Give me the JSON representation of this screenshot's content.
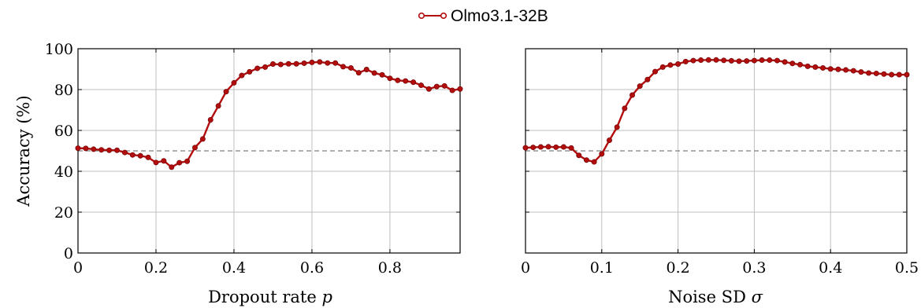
{
  "colors": {
    "series": "#b30d0d",
    "baseline": "#7f7f7f",
    "grid": "#bfbfbf"
  },
  "legend": {
    "label": "Olmo3.1-32B",
    "placement": "top-center"
  },
  "chart_data": [
    {
      "type": "line",
      "xlabel": "Dropout rate",
      "xlabel_symbol": "p",
      "ylabel": "Accuracy (%)",
      "xlim": [
        0,
        0.98
      ],
      "ylim": [
        0,
        100
      ],
      "xticks": [
        0,
        0.2,
        0.4,
        0.6,
        0.8
      ],
      "xtick_labels": [
        "0",
        "0.2",
        "0.4",
        "0.6",
        "0.8"
      ],
      "yticks": [
        0,
        20,
        40,
        60,
        80,
        100
      ],
      "ytick_labels": [
        "0",
        "20",
        "40",
        "60",
        "80",
        "100"
      ],
      "grid": true,
      "baseline": 50,
      "series": [
        {
          "name": "Olmo3.1-32B",
          "x": [
            0,
            0.02,
            0.04,
            0.06,
            0.08,
            0.1,
            0.12,
            0.14,
            0.16,
            0.18,
            0.2,
            0.22,
            0.24,
            0.26,
            0.28,
            0.3,
            0.32,
            0.34,
            0.36,
            0.38,
            0.4,
            0.42,
            0.44,
            0.46,
            0.48,
            0.5,
            0.52,
            0.54,
            0.56,
            0.58,
            0.6,
            0.62,
            0.64,
            0.66,
            0.68,
            0.7,
            0.72,
            0.74,
            0.76,
            0.78,
            0.8,
            0.82,
            0.84,
            0.86,
            0.88,
            0.9,
            0.92,
            0.94,
            0.96,
            0.98
          ],
          "y": [
            51.3,
            51.2,
            50.8,
            50.5,
            50.3,
            50.3,
            49.2,
            48.0,
            47.6,
            46.8,
            44.3,
            45.1,
            42.0,
            44.2,
            44.9,
            51.6,
            55.8,
            65.2,
            72.0,
            79.0,
            83.3,
            86.9,
            88.7,
            90.4,
            91.0,
            92.5,
            92.3,
            92.6,
            92.6,
            92.9,
            93.3,
            93.5,
            93.0,
            93.0,
            91.2,
            90.6,
            88.2,
            89.8,
            88.1,
            87.2,
            85.5,
            84.5,
            84.2,
            83.6,
            82.1,
            80.3,
            81.5,
            81.8,
            79.6,
            80.3
          ]
        }
      ]
    },
    {
      "type": "line",
      "xlabel": "Noise SD",
      "xlabel_symbol": "σ",
      "ylabel": "",
      "xlim": [
        0,
        0.5
      ],
      "ylim": [
        0,
        100
      ],
      "xticks": [
        0,
        0.1,
        0.2,
        0.3,
        0.4,
        0.5
      ],
      "xtick_labels": [
        "0",
        "0.1",
        "0.2",
        "0.3",
        "0.4",
        "0.5"
      ],
      "yticks": [
        0,
        20,
        40,
        60,
        80,
        100
      ],
      "ytick_labels": [],
      "grid": true,
      "baseline": 50,
      "series": [
        {
          "name": "Olmo3.1-32B",
          "x": [
            0,
            0.01,
            0.02,
            0.03,
            0.04,
            0.05,
            0.06,
            0.07,
            0.08,
            0.09,
            0.1,
            0.11,
            0.12,
            0.13,
            0.14,
            0.15,
            0.16,
            0.17,
            0.18,
            0.19,
            0.2,
            0.21,
            0.22,
            0.23,
            0.24,
            0.25,
            0.26,
            0.27,
            0.28,
            0.29,
            0.3,
            0.31,
            0.32,
            0.33,
            0.34,
            0.35,
            0.36,
            0.37,
            0.38,
            0.39,
            0.4,
            0.41,
            0.42,
            0.43,
            0.44,
            0.45,
            0.46,
            0.47,
            0.48,
            0.49,
            0.5
          ],
          "y": [
            51.5,
            51.7,
            51.9,
            52.0,
            51.8,
            51.9,
            51.4,
            47.8,
            45.5,
            44.6,
            48.5,
            55.2,
            61.6,
            70.8,
            77.3,
            81.7,
            84.9,
            88.8,
            91.0,
            92.0,
            92.5,
            93.7,
            94.2,
            94.4,
            94.5,
            94.5,
            94.3,
            94.1,
            93.9,
            94.0,
            94.2,
            94.4,
            94.4,
            94.2,
            93.5,
            92.8,
            92.2,
            91.4,
            91.0,
            90.6,
            90.1,
            89.9,
            89.6,
            89.2,
            88.6,
            88.1,
            87.9,
            87.6,
            87.3,
            87.3,
            87.3
          ]
        }
      ]
    }
  ]
}
